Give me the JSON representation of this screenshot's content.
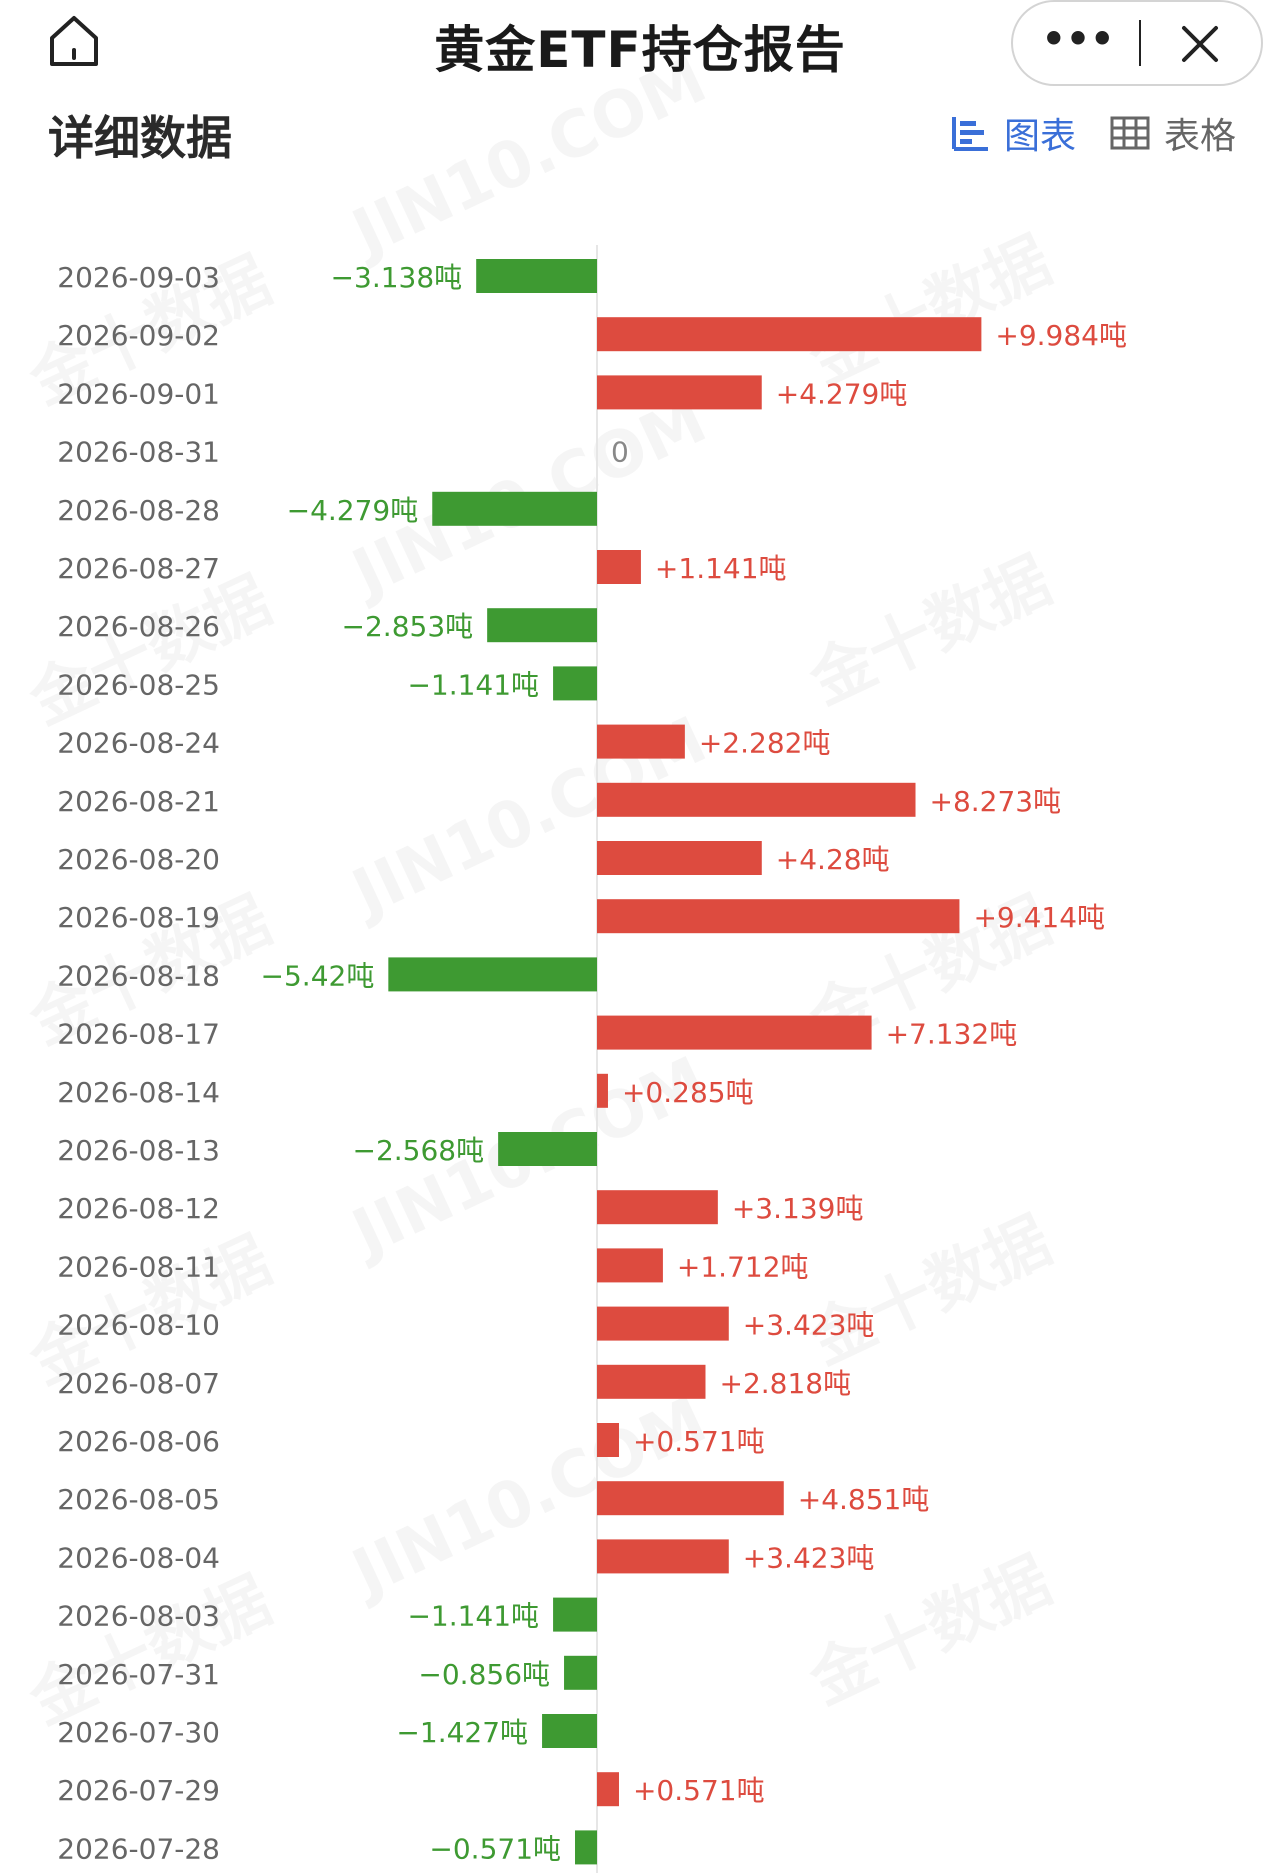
{
  "header": {
    "title": "黄金ETF持仓报告",
    "more_label": "•••",
    "home_icon": "home-icon",
    "close_icon": "close-icon"
  },
  "section": {
    "title": "详细数据",
    "view_chart_label": "图表",
    "view_table_label": "表格",
    "active_view": "chart",
    "chart_icon": "bar-chart-icon",
    "table_icon": "table-icon"
  },
  "watermark_text": "金十数据",
  "watermark_text_2": "JIN10.COM",
  "colors": {
    "positive": "#dd4b3f",
    "negative": "#3e9a32",
    "accent": "#3a6fd8"
  },
  "chart_data": {
    "type": "bar",
    "orientation": "horizontal",
    "unit": "吨",
    "categories": [
      "2026-09-03",
      "2026-09-02",
      "2026-09-01",
      "2026-08-31",
      "2026-08-28",
      "2026-08-27",
      "2026-08-26",
      "2026-08-25",
      "2026-08-24",
      "2026-08-21",
      "2026-08-20",
      "2026-08-19",
      "2026-08-18",
      "2026-08-17",
      "2026-08-14",
      "2026-08-13",
      "2026-08-12",
      "2026-08-11",
      "2026-08-10",
      "2026-08-07",
      "2026-08-06",
      "2026-08-05",
      "2026-08-04",
      "2026-08-03",
      "2026-07-31",
      "2026-07-30",
      "2026-07-29",
      "2026-07-28"
    ],
    "values": [
      -3.138,
      9.984,
      4.279,
      0,
      -4.279,
      1.141,
      -2.853,
      -1.141,
      2.282,
      8.273,
      4.28,
      9.414,
      -5.42,
      7.132,
      0.285,
      -2.568,
      3.139,
      1.712,
      3.423,
      2.818,
      0.571,
      4.851,
      3.423,
      -1.141,
      -0.856,
      -1.427,
      0.571,
      -0.571
    ],
    "labels": [
      "−3.138吨",
      "+9.984吨",
      "+4.279吨",
      "0",
      "−4.279吨",
      "+1.141吨",
      "−2.853吨",
      "−1.141吨",
      "+2.282吨",
      "+8.273吨",
      "+4.28吨",
      "+9.414吨",
      "−5.42吨",
      "+7.132吨",
      "+0.285吨",
      "−2.568吨",
      "+3.139吨",
      "+1.712吨",
      "+3.423吨",
      "+2.818吨",
      "+0.571吨",
      "+4.851吨",
      "+3.423吨",
      "−1.141吨",
      "−0.856吨",
      "−1.427吨",
      "+0.571吨",
      "−0.571吨"
    ],
    "xlim": [
      -10,
      10
    ]
  }
}
